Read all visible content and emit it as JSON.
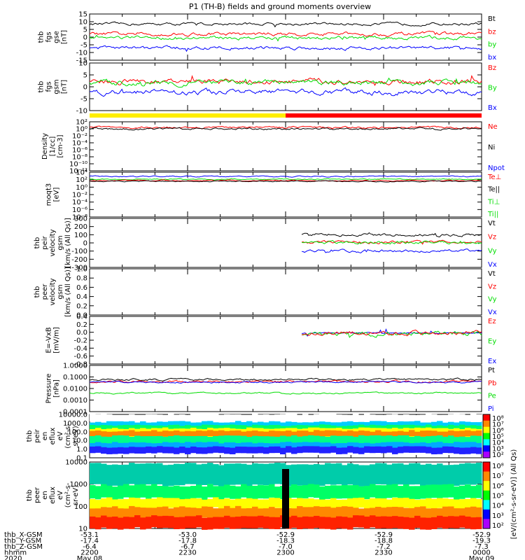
{
  "title": "P1 (TH-B) fields and ground moments overview",
  "colors": {
    "black": "#000000",
    "red": "#ff0000",
    "green": "#00dd00",
    "blue": "#0000ff",
    "yellow": "#ffff00",
    "ylw_bar": "#ffee00",
    "red_bar": "#ff0000"
  },
  "chart_data": [
    {
      "type": "line",
      "id": "fgs_gse",
      "ylabel": [
        "thb",
        "fgs",
        "gse",
        "[nT]"
      ],
      "yticks": [
        "15",
        "10",
        "5",
        "0",
        "-5",
        "-10",
        "-15"
      ],
      "ylim": [
        -15,
        15
      ],
      "legend": [
        "Bt",
        "bz",
        "by",
        "bx"
      ],
      "series": [
        {
          "name": "Bt",
          "base": 8.5
        },
        {
          "name": "bz",
          "base": 2.0
        },
        {
          "name": "by",
          "base": -0.5
        },
        {
          "name": "bx",
          "base": -7.0
        }
      ]
    },
    {
      "type": "line",
      "id": "fgs_gsm",
      "ylabel": [
        "thb",
        "fgs",
        "gsm",
        "[nT]"
      ],
      "yticks": [
        "10",
        "5",
        "0",
        "-5",
        "-10"
      ],
      "ylim": [
        -13,
        10
      ],
      "legend": [
        "Bz",
        "By",
        "Bx"
      ],
      "series": [
        {
          "name": "Bz",
          "base": 1.0
        },
        {
          "name": "By",
          "base": 0.5
        },
        {
          "name": "Bx",
          "base": -4.0
        }
      ]
    },
    {
      "type": "line",
      "id": "density",
      "ylabel": [
        "Density",
        "[1/cc]",
        "[cm-3]"
      ],
      "yticks": [
        "10²",
        "10⁰",
        "10⁻²",
        "10⁻⁴",
        "10⁻⁶",
        "10⁻⁸",
        "10⁻¹⁰",
        "10⁻¹²"
      ],
      "legend": [
        "Ne",
        "Ni",
        "Npot"
      ]
    },
    {
      "type": "line",
      "id": "temp",
      "ylabel": [
        "moqt3",
        "[eV]"
      ],
      "yticks": [
        "10⁴",
        "10²",
        "10⁰",
        "10⁻²",
        "10⁻⁴",
        "10⁻⁶",
        "10⁻⁸"
      ],
      "legend": [
        "Te⊥",
        "Te||",
        "Ti⊥",
        "Ti||"
      ]
    },
    {
      "type": "line",
      "id": "peir_vel",
      "ylabel": [
        "thb",
        "peir",
        "velocity",
        "gsm",
        "[km/s (All Qs)]"
      ],
      "yticks": [
        "300",
        "200",
        "100",
        "0",
        "-100",
        "-200",
        "-300"
      ],
      "ylim": [
        -300,
        300
      ],
      "legend": [
        "Vt",
        "Vz",
        "Vy",
        "Vx"
      ],
      "series": [
        {
          "name": "Vt",
          "base": 100
        },
        {
          "name": "Vz",
          "base": 10
        },
        {
          "name": "Vy",
          "base": 5
        },
        {
          "name": "Vx",
          "base": -100
        }
      ]
    },
    {
      "type": "line",
      "id": "peer_vel",
      "ylabel": [
        "thb",
        "peer",
        "velocity",
        "gsm",
        "[km/s (All Qs)]"
      ],
      "yticks": [
        "1.0",
        "0.8",
        "0.6",
        "0.4",
        "0.2",
        "0.0"
      ],
      "ylim": [
        0,
        1
      ],
      "legend": [
        "Vt",
        "Vz",
        "Vy",
        "Vx"
      ]
    },
    {
      "type": "line",
      "id": "efield",
      "ylabel": [
        "E=-VxB",
        "[mV/m]"
      ],
      "yticks": [
        "0.4",
        "0.2",
        "0.0",
        "-0.2",
        "-0.4",
        "-0.6",
        "-0.8"
      ],
      "ylim": [
        -0.85,
        0.45
      ],
      "legend": [
        "Ez",
        "Ey",
        "Ex"
      ]
    },
    {
      "type": "line",
      "id": "pressure",
      "ylabel": [
        "Pressure",
        "[nPa]"
      ],
      "yticks": [
        "1.0000",
        "0.1000",
        "0.0100",
        "0.0010",
        "0.0001"
      ],
      "legend": [
        "Pt",
        "Pb",
        "Pe",
        "Pi"
      ]
    },
    {
      "type": "heatmap",
      "id": "peir_en",
      "ylabel": [
        "thb",
        "peir",
        "en",
        "eflux",
        "eV",
        "(cm²-s-",
        "sr-eV)"
      ],
      "yticks": [
        "10000.0",
        "1000.0",
        "100.0",
        "10.0",
        "1.0",
        "0.1"
      ],
      "cbar_ticks": [
        "10⁸",
        "10⁷",
        "10⁶",
        "10⁵",
        "10⁴",
        "10³",
        "10²"
      ]
    },
    {
      "type": "heatmap",
      "id": "peer_en",
      "ylabel": [
        "thb",
        "peer",
        "en",
        "eflux",
        "eV",
        "(cm²-s-",
        "sr-eV)"
      ],
      "yticks": [
        "10000",
        "1000",
        "100",
        "10"
      ],
      "cbar_ticks": [
        "10⁸",
        "10⁷",
        "10⁶",
        "10⁵",
        "10⁴",
        "10³",
        "10²"
      ]
    }
  ],
  "cbar_label": "[eV/(cm²-s-sr-eV)] (All Qs)",
  "xaxis": {
    "rows": [
      {
        "label": "thb_X-GSM",
        "values": [
          "-53.1",
          "-53.0",
          "-52.9",
          "-52.9",
          "-52.9"
        ]
      },
      {
        "label": "thb_Y-GSM",
        "values": [
          "-17.4",
          "-17.8",
          "-18.3",
          "-18.8",
          "-19.3"
        ]
      },
      {
        "label": "thb_Z-GSM",
        "values": [
          "-6.4",
          "-6.7",
          "-7.0",
          "-7.2",
          "-7.3"
        ]
      },
      {
        "label": "hhmm",
        "values": [
          "2200",
          "2230",
          "2300",
          "2330",
          "0000"
        ]
      },
      {
        "label": "2020",
        "values": [
          "May 08",
          "",
          "",
          "",
          "May 09"
        ]
      }
    ]
  }
}
